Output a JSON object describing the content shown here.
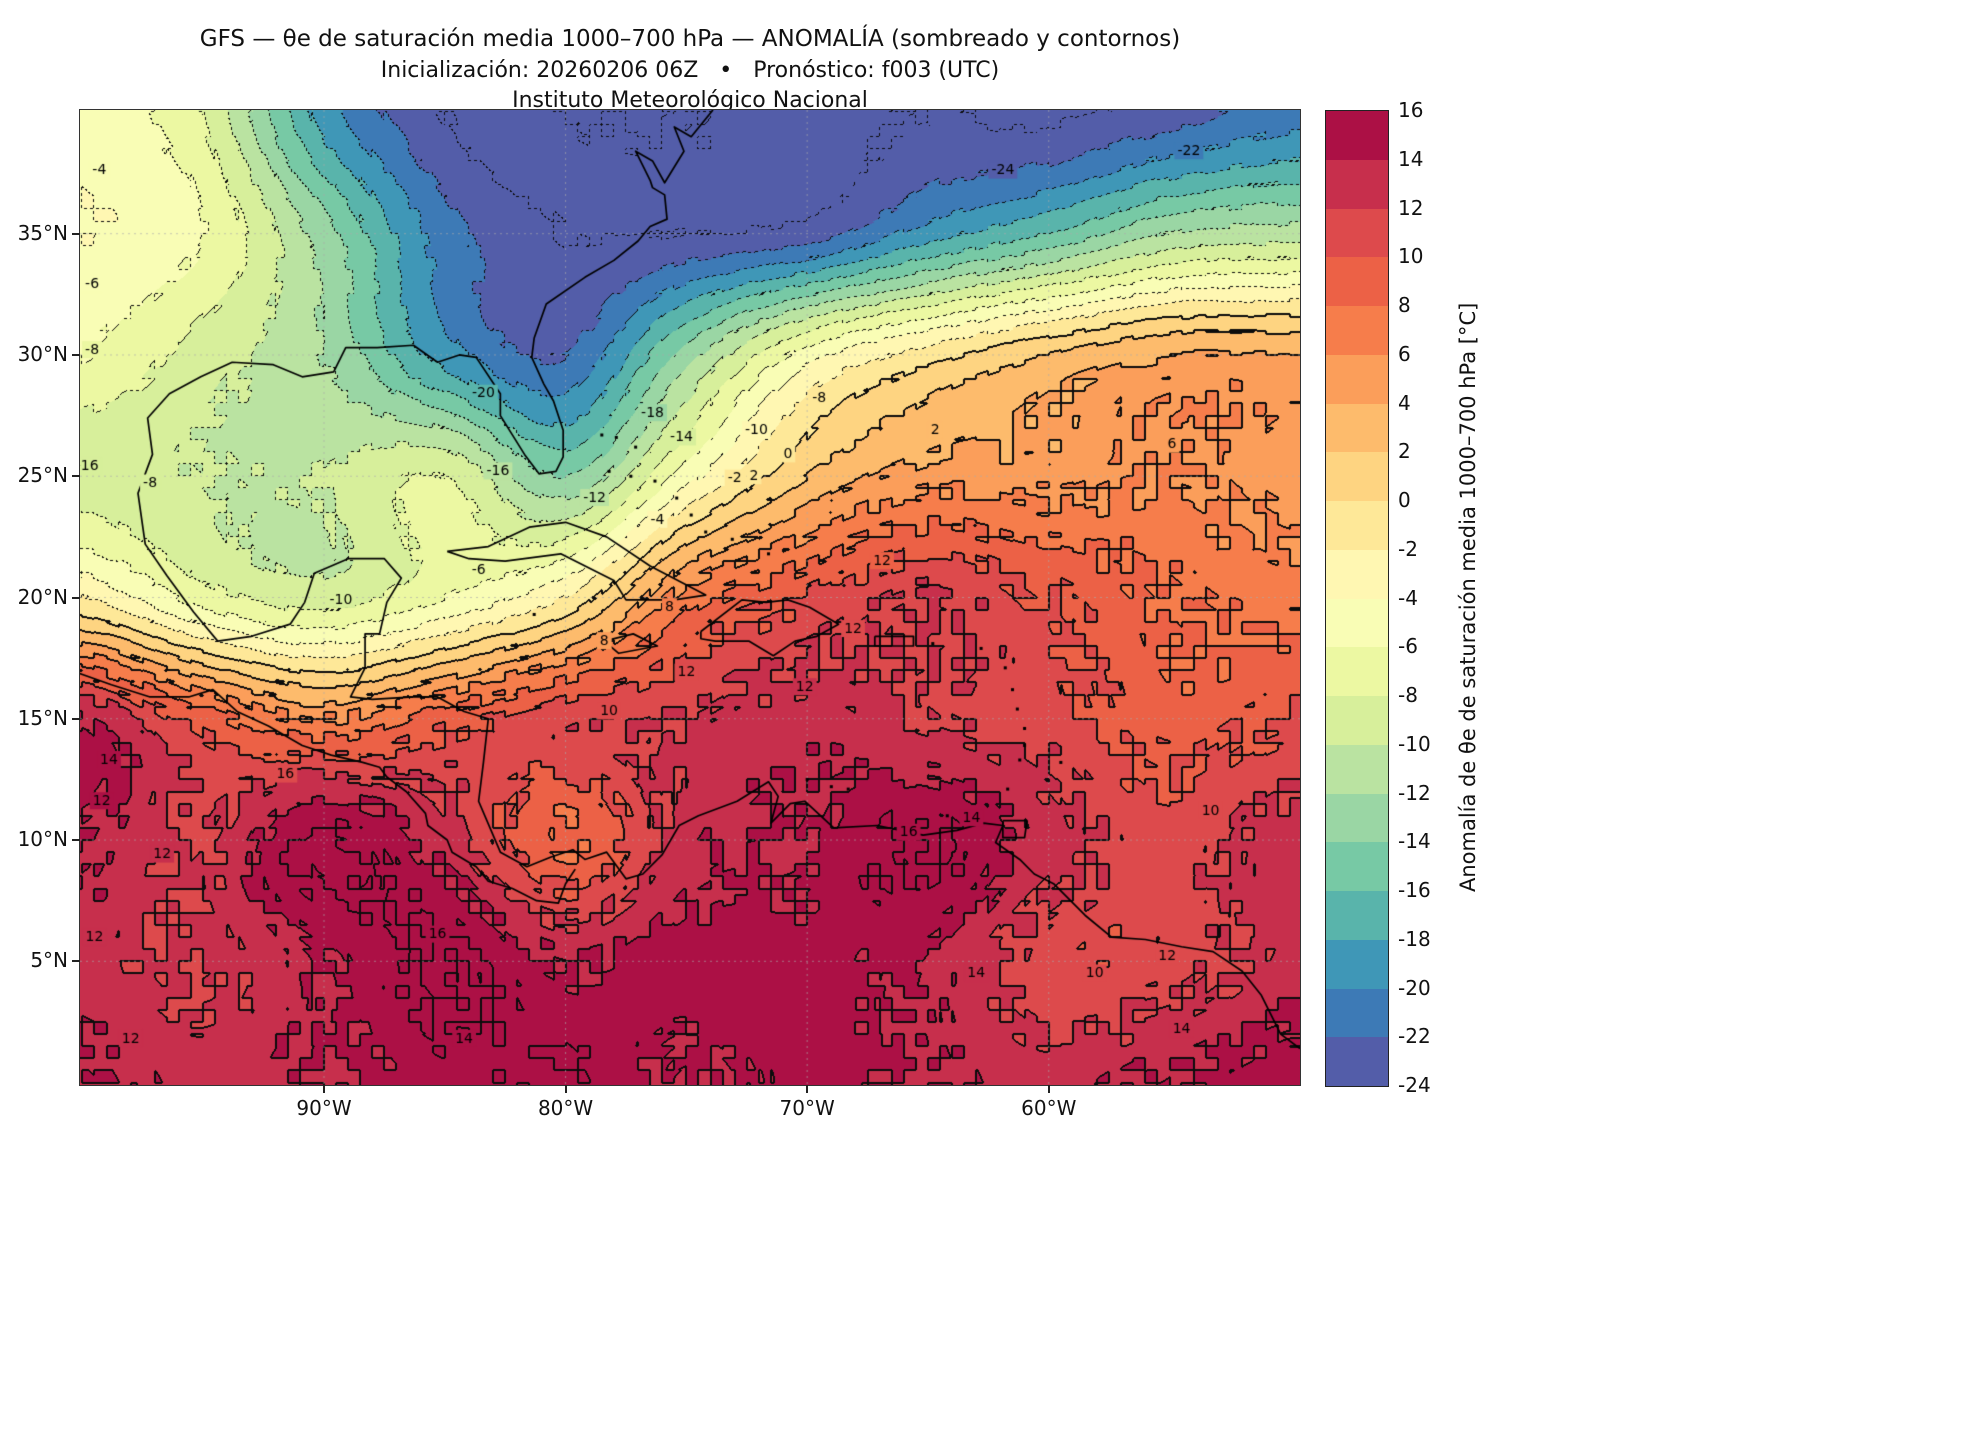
{
  "title": {
    "line1": "GFS — θe de saturación media 1000–700 hPa — ANOMALÍA (sombreado y contornos)",
    "line2": "Inicialización: 20260206 06Z   •   Pronóstico: f003 (UTC)",
    "line3": "Instituto Meteorológico Nacional"
  },
  "axes": {
    "x_ticks": [
      {
        "label": "90°W",
        "lon": -90
      },
      {
        "label": "80°W",
        "lon": -80
      },
      {
        "label": "70°W",
        "lon": -70
      },
      {
        "label": "60°W",
        "lon": -60
      }
    ],
    "y_ticks": [
      {
        "label": "35°N",
        "lat": 35
      },
      {
        "label": "30°N",
        "lat": 30
      },
      {
        "label": "25°N",
        "lat": 25
      },
      {
        "label": "20°N",
        "lat": 20
      },
      {
        "label": "15°N",
        "lat": 15
      },
      {
        "label": "10°N",
        "lat": 10
      },
      {
        "label": "5°N",
        "lat": 5
      }
    ],
    "lon_range": [
      -100.1,
      -49.6
    ],
    "lat_range": [
      -0.1,
      40.1
    ]
  },
  "colorbar": {
    "label": "Anomalía de θe de saturación media 1000–700 hPa [°C]",
    "min": -24,
    "max": 16,
    "step": 2,
    "tick_values": [
      16,
      14,
      12,
      10,
      8,
      6,
      4,
      2,
      0,
      -2,
      -4,
      -6,
      -8,
      -10,
      -12,
      -14,
      -16,
      -18,
      -20,
      -22,
      -24
    ],
    "palette": [
      "#5e4fa2",
      "#3288bd",
      "#66c2a5",
      "#abdda4",
      "#e6f598",
      "#ffffbf",
      "#fee08b",
      "#fdae61",
      "#f46d43",
      "#d53e4f",
      "#9e0142"
    ]
  },
  "chart_data": {
    "type": "heatmap",
    "variable": "Anomalía de θe de saturación media 1000–700 hPa",
    "units": "°C",
    "model": "GFS",
    "init": "20260206 06Z",
    "forecast": "f003 (UTC)",
    "institution": "Instituto Meteorológico Nacional",
    "contour_interval": 2,
    "levels": [
      -24,
      -22,
      -20,
      -18,
      -16,
      -14,
      -12,
      -10,
      -8,
      -6,
      -4,
      -2,
      0,
      2,
      4,
      6,
      8,
      10,
      12,
      14,
      16
    ],
    "negative_contours_dotted": true,
    "grid": {
      "lons": [
        -100,
        -95,
        -90,
        -85,
        -80,
        -75,
        -70,
        -65,
        -60,
        -55,
        -50
      ],
      "lats": [
        40,
        35,
        30,
        25,
        20,
        15,
        10,
        5,
        0
      ],
      "values": [
        [
          -5,
          -8,
          -19,
          -24,
          -26,
          -26,
          -25,
          -24,
          -24.5,
          -23,
          -21
        ],
        [
          -4,
          -6,
          -13,
          -21,
          -24,
          -24,
          -23,
          -19,
          -16,
          -12,
          -11
        ],
        [
          -6,
          -9,
          -12,
          -19,
          -22,
          -13,
          -5,
          -1,
          2,
          4,
          4
        ],
        [
          -9,
          -10,
          -10,
          -8,
          -14,
          -5,
          2,
          5,
          5,
          6,
          5
        ],
        [
          -2,
          -7,
          -9,
          -6,
          -2,
          7,
          10,
          12,
          10,
          8,
          7
        ],
        [
          14,
          9,
          6,
          9,
          11,
          12,
          13,
          12,
          11,
          9,
          10
        ],
        [
          14,
          12,
          16.5,
          13,
          8,
          13,
          14,
          16.2,
          13,
          11,
          13
        ],
        [
          13,
          12,
          14,
          16.3,
          14,
          15,
          15,
          14,
          11,
          11,
          13
        ],
        [
          14,
          13,
          14,
          15,
          15.8,
          14,
          15,
          14,
          13,
          14,
          15
        ]
      ]
    },
    "contour_labels": [
      {
        "v": -4,
        "lon": -99.3,
        "lat": 37.6
      },
      {
        "v": -6,
        "lon": -99.6,
        "lat": 32.9
      },
      {
        "v": -8,
        "lon": -99.6,
        "lat": 30.2
      },
      {
        "v": -16,
        "lon": -99.8,
        "lat": 25.4
      },
      {
        "v": -8,
        "lon": -97.2,
        "lat": 24.7
      },
      {
        "v": -10,
        "lon": -89.3,
        "lat": 19.9
      },
      {
        "v": -6,
        "lon": -83.6,
        "lat": 21.1
      },
      {
        "v": -16,
        "lon": -82.8,
        "lat": 25.2
      },
      {
        "v": -20,
        "lon": -83.4,
        "lat": 28.4
      },
      {
        "v": -12,
        "lon": -78.8,
        "lat": 24.1
      },
      {
        "v": -4,
        "lon": -76.2,
        "lat": 23.2
      },
      {
        "v": -14,
        "lon": -75.2,
        "lat": 26.6
      },
      {
        "v": -18,
        "lon": -76.4,
        "lat": 27.6
      },
      {
        "v": -2,
        "lon": -73.0,
        "lat": 24.9
      },
      {
        "v": 2,
        "lon": -72.2,
        "lat": 25.0
      },
      {
        "v": 0,
        "lon": -70.8,
        "lat": 25.9
      },
      {
        "v": 2,
        "lon": -64.7,
        "lat": 26.9
      },
      {
        "v": -8,
        "lon": -69.5,
        "lat": 28.2
      },
      {
        "v": -10,
        "lon": -72.1,
        "lat": 26.9
      },
      {
        "v": -24,
        "lon": -61.9,
        "lat": 37.6
      },
      {
        "v": -22,
        "lon": -54.2,
        "lat": 38.4
      },
      {
        "v": 6,
        "lon": -54.9,
        "lat": 26.3
      },
      {
        "v": 8,
        "lon": -75.7,
        "lat": 19.6
      },
      {
        "v": 8,
        "lon": -78.4,
        "lat": 18.2
      },
      {
        "v": 10,
        "lon": -78.2,
        "lat": 15.3
      },
      {
        "v": 12,
        "lon": -66.9,
        "lat": 21.5
      },
      {
        "v": 12,
        "lon": -68.1,
        "lat": 18.7
      },
      {
        "v": 12,
        "lon": -70.1,
        "lat": 16.3
      },
      {
        "v": 12,
        "lon": -75.0,
        "lat": 16.9
      },
      {
        "v": 14,
        "lon": -98.9,
        "lat": 13.3
      },
      {
        "v": 12,
        "lon": -99.2,
        "lat": 11.6
      },
      {
        "v": 12,
        "lon": -96.7,
        "lat": 9.4
      },
      {
        "v": 16,
        "lon": -91.6,
        "lat": 12.7
      },
      {
        "v": 16,
        "lon": -85.3,
        "lat": 6.1
      },
      {
        "v": 14,
        "lon": -63.2,
        "lat": 10.9
      },
      {
        "v": 10,
        "lon": -53.3,
        "lat": 11.2
      },
      {
        "v": 14,
        "lon": -63.0,
        "lat": 4.5
      },
      {
        "v": 10,
        "lon": -58.1,
        "lat": 4.5
      },
      {
        "v": 12,
        "lon": -55.1,
        "lat": 5.2
      },
      {
        "v": 14,
        "lon": -54.5,
        "lat": 2.2
      },
      {
        "v": 12,
        "lon": -99.5,
        "lat": 6.0
      },
      {
        "v": 12,
        "lon": -98.0,
        "lat": 1.8
      },
      {
        "v": 14,
        "lon": -84.2,
        "lat": 1.8
      },
      {
        "v": 16,
        "lon": -65.8,
        "lat": 10.3
      }
    ]
  },
  "map": {
    "coastlines": {
      "mainland_atlantic": [
        [
          -73.9,
          40.1
        ],
        [
          -74.8,
          39.0
        ],
        [
          -75.5,
          39.4
        ],
        [
          -75.1,
          38.4
        ],
        [
          -75.9,
          37.1
        ],
        [
          -76.4,
          38.0
        ],
        [
          -77.1,
          38.4
        ],
        [
          -76.5,
          37.2
        ],
        [
          -76.4,
          36.9
        ],
        [
          -75.9,
          36.6
        ],
        [
          -75.8,
          35.6
        ],
        [
          -76.5,
          35.3
        ],
        [
          -77.0,
          34.7
        ],
        [
          -78.0,
          33.9
        ],
        [
          -79.2,
          33.2
        ],
        [
          -80.8,
          32.1
        ],
        [
          -81.3,
          30.7
        ],
        [
          -81.4,
          29.9
        ],
        [
          -80.9,
          28.8
        ],
        [
          -80.5,
          28.1
        ],
        [
          -80.1,
          26.9
        ],
        [
          -80.1,
          25.8
        ],
        [
          -80.4,
          25.2
        ],
        [
          -81.1,
          25.1
        ],
        [
          -81.7,
          25.9
        ],
        [
          -82.7,
          27.5
        ],
        [
          -82.7,
          28.4
        ],
        [
          -83.7,
          29.9
        ],
        [
          -84.4,
          30.0
        ],
        [
          -85.3,
          29.7
        ],
        [
          -86.3,
          30.4
        ],
        [
          -87.8,
          30.3
        ],
        [
          -89.1,
          30.3
        ],
        [
          -89.6,
          29.3
        ],
        [
          -90.9,
          29.1
        ],
        [
          -92.1,
          29.6
        ],
        [
          -93.8,
          29.7
        ],
        [
          -95.1,
          29.1
        ],
        [
          -96.4,
          28.4
        ],
        [
          -97.3,
          27.4
        ],
        [
          -97.1,
          25.9
        ],
        [
          -97.7,
          24.3
        ],
        [
          -97.4,
          22.2
        ],
        [
          -96.5,
          20.9
        ],
        [
          -95.4,
          19.4
        ],
        [
          -94.4,
          18.2
        ],
        [
          -93.0,
          18.4
        ],
        [
          -91.4,
          18.9
        ],
        [
          -90.8,
          19.8
        ],
        [
          -90.4,
          21.0
        ],
        [
          -89.0,
          21.6
        ],
        [
          -87.5,
          21.6
        ],
        [
          -86.8,
          20.8
        ],
        [
          -87.4,
          19.8
        ],
        [
          -87.7,
          18.5
        ],
        [
          -88.3,
          18.5
        ],
        [
          -88.3,
          17.1
        ],
        [
          -88.9,
          15.9
        ],
        [
          -88.0,
          15.8
        ],
        [
          -86.3,
          15.9
        ],
        [
          -85.3,
          15.9
        ],
        [
          -84.2,
          15.3
        ],
        [
          -83.2,
          15.0
        ],
        [
          -83.4,
          13.2
        ],
        [
          -83.6,
          11.6
        ],
        [
          -82.7,
          9.5
        ],
        [
          -81.6,
          8.9
        ],
        [
          -80.6,
          9.3
        ],
        [
          -79.7,
          9.6
        ],
        [
          -79.2,
          9.2
        ],
        [
          -78.3,
          9.5
        ],
        [
          -77.5,
          8.4
        ],
        [
          -76.8,
          8.6
        ],
        [
          -76.0,
          9.4
        ],
        [
          -75.3,
          10.6
        ],
        [
          -74.5,
          11.0
        ],
        [
          -72.9,
          11.6
        ],
        [
          -71.6,
          12.4
        ],
        [
          -71.2,
          11.8
        ],
        [
          -71.5,
          10.7
        ],
        [
          -70.7,
          11.5
        ],
        [
          -70.1,
          11.6
        ],
        [
          -68.9,
          10.5
        ],
        [
          -67.1,
          10.6
        ],
        [
          -65.2,
          10.2
        ],
        [
          -63.8,
          10.4
        ],
        [
          -62.7,
          10.7
        ],
        [
          -61.9,
          10.6
        ],
        [
          -62.2,
          9.9
        ],
        [
          -61.2,
          9.2
        ],
        [
          -60.6,
          8.6
        ],
        [
          -59.8,
          8.2
        ],
        [
          -58.5,
          6.9
        ],
        [
          -57.4,
          6.0
        ],
        [
          -56.0,
          5.9
        ],
        [
          -54.5,
          5.6
        ],
        [
          -53.2,
          5.4
        ],
        [
          -52.0,
          4.6
        ],
        [
          -51.2,
          3.6
        ],
        [
          -50.4,
          2.0
        ],
        [
          -49.6,
          1.4
        ]
      ],
      "pacific_mainland": [
        [
          -100.2,
          16.9
        ],
        [
          -98.8,
          16.4
        ],
        [
          -97.2,
          15.9
        ],
        [
          -95.6,
          15.9
        ],
        [
          -94.6,
          16.2
        ],
        [
          -93.6,
          15.3
        ],
        [
          -92.3,
          14.7
        ],
        [
          -90.9,
          13.9
        ],
        [
          -89.7,
          13.5
        ],
        [
          -88.4,
          13.2
        ],
        [
          -87.7,
          13.0
        ],
        [
          -87.4,
          12.6
        ],
        [
          -86.6,
          12.0
        ],
        [
          -85.8,
          11.1
        ],
        [
          -85.7,
          10.6
        ],
        [
          -84.9,
          10.0
        ],
        [
          -84.7,
          9.5
        ],
        [
          -83.7,
          8.9
        ],
        [
          -83.2,
          8.3
        ],
        [
          -82.2,
          8.0
        ],
        [
          -81.2,
          7.5
        ],
        [
          -80.3,
          7.4
        ],
        [
          -80.0,
          8.2
        ],
        [
          -79.6,
          8.8
        ]
      ],
      "cuba": [
        [
          -84.9,
          21.9
        ],
        [
          -83.2,
          22.1
        ],
        [
          -81.5,
          22.9
        ],
        [
          -80.0,
          23.1
        ],
        [
          -78.3,
          22.5
        ],
        [
          -76.5,
          21.3
        ],
        [
          -74.2,
          20.1
        ],
        [
          -75.5,
          19.9
        ],
        [
          -77.5,
          19.9
        ],
        [
          -78.0,
          20.7
        ],
        [
          -80.2,
          21.8
        ],
        [
          -82.5,
          21.5
        ],
        [
          -84.0,
          21.6
        ],
        [
          -84.9,
          21.9
        ]
      ],
      "hispaniola": [
        [
          -74.4,
          18.6
        ],
        [
          -72.7,
          19.9
        ],
        [
          -71.7,
          19.8
        ],
        [
          -70.8,
          19.9
        ],
        [
          -69.9,
          19.6
        ],
        [
          -68.7,
          18.9
        ],
        [
          -69.6,
          18.4
        ],
        [
          -70.5,
          18.2
        ],
        [
          -71.4,
          17.6
        ],
        [
          -72.4,
          18.2
        ],
        [
          -73.8,
          18.2
        ],
        [
          -74.4,
          18.3
        ],
        [
          -74.4,
          18.6
        ]
      ],
      "jamaica": [
        [
          -78.4,
          18.2
        ],
        [
          -77.2,
          18.5
        ],
        [
          -76.2,
          18.0
        ],
        [
          -77.8,
          17.7
        ],
        [
          -78.4,
          18.2
        ]
      ],
      "puerto_rico": [
        [
          -67.2,
          18.4
        ],
        [
          -65.6,
          18.4
        ],
        [
          -65.6,
          18.0
        ],
        [
          -67.2,
          18.0
        ],
        [
          -67.2,
          18.4
        ]
      ],
      "trinidad": [
        [
          -61.9,
          10.8
        ],
        [
          -60.9,
          10.8
        ],
        [
          -61.0,
          10.1
        ],
        [
          -61.9,
          10.1
        ],
        [
          -61.9,
          10.8
        ]
      ]
    },
    "islands": [
      [
        -78.5,
        26.7
      ],
      [
        -77.9,
        26.6
      ],
      [
        -77.1,
        26.2
      ],
      [
        -78.2,
        25.2
      ],
      [
        -77.3,
        25.0
      ],
      [
        -76.3,
        24.8
      ],
      [
        -75.4,
        24.1
      ],
      [
        -74.8,
        23.4
      ],
      [
        -74.2,
        22.7
      ],
      [
        -73.1,
        22.4
      ],
      [
        -71.6,
        21.8
      ],
      [
        -81.3,
        19.3
      ],
      [
        -70.0,
        12.5
      ],
      [
        -69.0,
        12.2
      ],
      [
        -68.3,
        12.1
      ],
      [
        -64.2,
        11.0
      ],
      [
        -61.7,
        12.1
      ],
      [
        -61.2,
        13.3
      ],
      [
        -61.0,
        13.9
      ],
      [
        -61.0,
        14.6
      ],
      [
        -61.3,
        15.4
      ],
      [
        -61.5,
        16.2
      ],
      [
        -61.8,
        17.1
      ],
      [
        -62.8,
        17.9
      ],
      [
        -59.5,
        13.2
      ],
      [
        -64.8,
        18.1
      ]
    ]
  }
}
